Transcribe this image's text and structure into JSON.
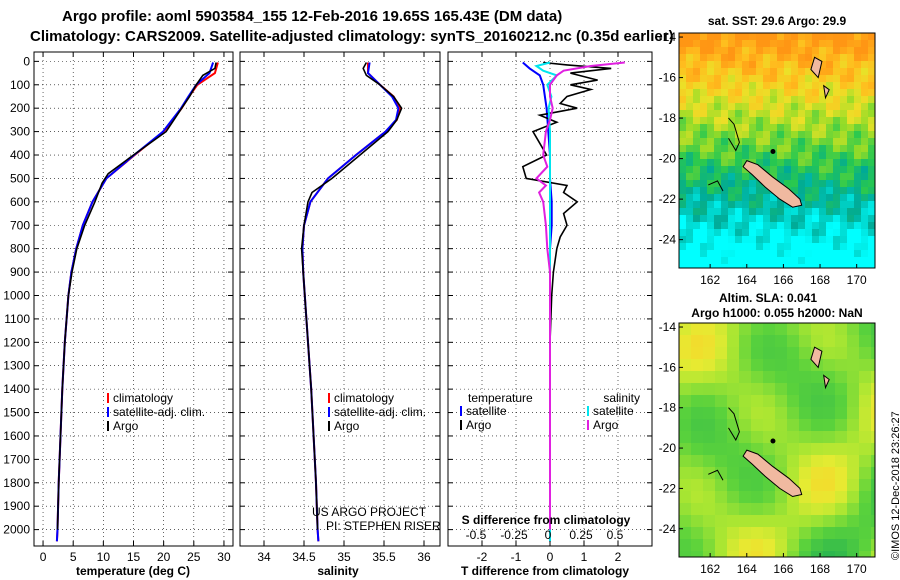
{
  "titles": {
    "line1": "Argo profile: aoml 5903584_155 12-Feb-2016 19.65S 165.43E (DM data)",
    "line2": "Climatology: CARS2009. Satellite-adjusted climatology: synTS_20160212.nc (0.35d earlier)"
  },
  "colors": {
    "climatology": "#ff0000",
    "satellite": "#0000ff",
    "argo": "#000000",
    "sat_salinity": "#00e5ee",
    "argo_salinity": "#e020e0"
  },
  "depth_axis": {
    "ticks": [
      0,
      100,
      200,
      300,
      400,
      500,
      600,
      700,
      800,
      900,
      1000,
      1100,
      1200,
      1300,
      1400,
      1500,
      1600,
      1700,
      1800,
      1900,
      2000
    ],
    "tick_labels": [
      "0",
      "100",
      "200",
      "300",
      "400",
      "500",
      "600",
      "700",
      "800",
      "900",
      "1000",
      "1100",
      "1200",
      "1300",
      "1400",
      "1500",
      "1600",
      "1700",
      "1800",
      "1900",
      "2000"
    ],
    "range": [
      -40,
      2070
    ]
  },
  "chart_data": [
    {
      "type": "line",
      "name": "temperature",
      "xlabel": "temperature (deg C)",
      "xlim": [
        -1.5,
        31.5
      ],
      "xticks": [
        0,
        5,
        10,
        15,
        20,
        25,
        30
      ],
      "xtick_labels": [
        "0",
        "5",
        "10",
        "15",
        "20",
        "25",
        "30"
      ],
      "legend": [
        "climatology",
        "satellite-adj. clim.",
        "Argo"
      ],
      "series": [
        {
          "name": "climatology",
          "depth": [
            5,
            50,
            100,
            150,
            200,
            300,
            400,
            500,
            600,
            700,
            800,
            900,
            1000,
            1200,
            1400,
            1600,
            1800,
            2000,
            2050
          ],
          "values": [
            29.0,
            28.5,
            25.6,
            24.2,
            23.0,
            20.0,
            15.2,
            10.5,
            8.2,
            6.6,
            5.5,
            4.7,
            4.2,
            3.6,
            3.2,
            2.9,
            2.6,
            2.4,
            2.3
          ]
        },
        {
          "name": "satellite-adj. clim.",
          "depth": [
            5,
            50,
            100,
            150,
            200,
            300,
            400,
            500,
            600,
            700,
            800,
            900,
            1000,
            1200,
            1400,
            1600,
            1800,
            2000,
            2050
          ],
          "values": [
            28.2,
            27.6,
            25.4,
            24.1,
            22.9,
            19.9,
            15.1,
            10.5,
            8.2,
            6.6,
            5.5,
            4.7,
            4.2,
            3.6,
            3.2,
            2.9,
            2.6,
            2.4,
            2.3
          ]
        },
        {
          "name": "Argo",
          "depth": [
            5,
            30,
            60,
            100,
            150,
            200,
            300,
            400,
            480,
            520,
            600,
            700,
            800,
            900,
            1000,
            1200,
            1400,
            1600,
            1800,
            2000
          ],
          "values": [
            28.7,
            28.5,
            26.5,
            25.4,
            24.3,
            23.0,
            20.4,
            15.0,
            10.8,
            9.8,
            8.6,
            6.9,
            5.6,
            4.8,
            4.2,
            3.6,
            3.2,
            2.9,
            2.6,
            2.4
          ]
        }
      ]
    },
    {
      "type": "line",
      "name": "salinity",
      "xlabel": "salinity",
      "xlim": [
        33.7,
        36.2
      ],
      "xticks": [
        34,
        34.5,
        35,
        35.5,
        36
      ],
      "xtick_labels": [
        "34",
        "34.5",
        "35",
        "35.5",
        "36"
      ],
      "legend": [
        "climatology",
        "satellite-adj. clim.",
        "Argo"
      ],
      "credit": [
        "US ARGO PROJECT",
        "PI: STEPHEN RISER"
      ],
      "series": [
        {
          "name": "climatology",
          "depth": [
            5,
            50,
            100,
            150,
            200,
            250,
            300,
            400,
            500,
            600,
            700,
            800,
            900,
            1000,
            1200,
            1400,
            1600,
            1800,
            2000,
            2050
          ],
          "values": [
            35.3,
            35.3,
            35.45,
            35.62,
            35.7,
            35.66,
            35.52,
            35.15,
            34.8,
            34.58,
            34.5,
            34.48,
            34.49,
            34.51,
            34.55,
            34.59,
            34.62,
            34.65,
            34.67,
            34.68
          ]
        },
        {
          "name": "satellite-adj. clim.",
          "depth": [
            5,
            50,
            100,
            150,
            200,
            250,
            300,
            400,
            500,
            600,
            700,
            800,
            900,
            1000,
            1200,
            1400,
            1600,
            1800,
            2000,
            2050
          ],
          "values": [
            35.32,
            35.3,
            35.45,
            35.6,
            35.68,
            35.65,
            35.52,
            35.15,
            34.8,
            34.58,
            34.5,
            34.48,
            34.49,
            34.51,
            34.55,
            34.59,
            34.62,
            34.65,
            34.67,
            34.68
          ]
        },
        {
          "name": "Argo",
          "depth": [
            5,
            30,
            60,
            100,
            150,
            200,
            250,
            300,
            400,
            500,
            560,
            600,
            700,
            800,
            900,
            1000,
            1200,
            1400,
            1600,
            1800,
            2000
          ],
          "values": [
            35.28,
            35.24,
            35.28,
            35.45,
            35.62,
            35.72,
            35.66,
            35.55,
            35.2,
            34.85,
            34.6,
            34.55,
            34.5,
            34.47,
            34.49,
            34.51,
            34.55,
            34.59,
            34.62,
            34.65,
            34.67
          ]
        }
      ]
    },
    {
      "type": "line",
      "name": "difference",
      "xlabel": "T difference from climatology",
      "xlim": [
        -3.0,
        3.0
      ],
      "xticks": [
        -2,
        -1,
        0,
        1,
        2
      ],
      "xtick_labels": [
        "-2",
        "-1",
        "0",
        "1",
        "2"
      ],
      "s_label": "S difference from climatology",
      "s_ticks": [
        "-0.5",
        "-0.25",
        "0",
        "0.25",
        "0.5"
      ],
      "legend_t": [
        "temperature",
        "satellite",
        "Argo"
      ],
      "legend_s": [
        "salinity",
        "satellite",
        "Argo"
      ],
      "series": [
        {
          "name": "T satellite",
          "depth": [
            5,
            30,
            60,
            100,
            200,
            300,
            400,
            500,
            600,
            700,
            800,
            1000,
            1500,
            2050
          ],
          "values": [
            -0.8,
            -0.6,
            -0.3,
            -0.2,
            -0.1,
            -0.05,
            0,
            0,
            0.05,
            0.05,
            0,
            0,
            0,
            0
          ]
        },
        {
          "name": "T Argo",
          "depth": [
            5,
            15,
            30,
            50,
            80,
            100,
            120,
            150,
            180,
            200,
            230,
            260,
            300,
            350,
            400,
            450,
            500,
            530,
            560,
            600,
            650,
            700,
            750,
            800,
            900,
            1000,
            1200,
            1500,
            2000
          ],
          "values": [
            -0.2,
            0.5,
            1.8,
            0.6,
            1.4,
            0.6,
            1.2,
            0.5,
            0.3,
            0.8,
            -0.3,
            0.2,
            -0.5,
            -0.3,
            -0.1,
            -0.8,
            -0.7,
            0.5,
            0.4,
            0.8,
            0.4,
            0.5,
            0.3,
            0.2,
            0.1,
            0.05,
            0,
            0,
            0
          ]
        },
        {
          "name": "S satellite",
          "depth": [
            5,
            20,
            40,
            60,
            100,
            150,
            200,
            300,
            400,
            500,
            600,
            800,
            1000,
            1500,
            2050
          ],
          "values": [
            0.0,
            -0.1,
            -0.05,
            0.05,
            -0.02,
            0.01,
            -0.01,
            0,
            0,
            0,
            0,
            0,
            0,
            0,
            0
          ]
        },
        {
          "name": "S Argo",
          "depth": [
            5,
            20,
            40,
            60,
            100,
            150,
            200,
            250,
            300,
            400,
            450,
            500,
            530,
            560,
            600,
            700,
            800,
            900,
            1000,
            1500,
            2000
          ],
          "values": [
            0.55,
            0.3,
            0.1,
            0.05,
            0.0,
            0.0,
            0.02,
            0.0,
            -0.03,
            -0.05,
            -0.02,
            -0.1,
            -0.03,
            -0.08,
            -0.05,
            -0.03,
            -0.02,
            0.0,
            0.0,
            0.0,
            0.0
          ]
        }
      ]
    },
    {
      "type": "heatmap",
      "name": "sst-map",
      "title": "sat. SST: 29.6 Argo: 29.9",
      "xticks": [
        162,
        164,
        166,
        168,
        170
      ],
      "yticks": [
        -14,
        -16,
        -18,
        -20,
        -22,
        -24
      ],
      "xlim": [
        160.3,
        171
      ],
      "ylim": [
        -25.4,
        -13.8
      ],
      "argo_position": [
        165.43,
        -19.65
      ]
    },
    {
      "type": "heatmap",
      "name": "sla-map",
      "title1": "Altim. SLA: 0.041",
      "title2": "Argo h1000: 0.055 h2000: NaN",
      "xticks": [
        162,
        164,
        166,
        168,
        170
      ],
      "yticks": [
        -14,
        -16,
        -18,
        -20,
        -22,
        -24
      ],
      "xlim": [
        160.3,
        171
      ],
      "ylim": [
        -25.4,
        -13.8
      ],
      "argo_position": [
        165.43,
        -19.65
      ]
    }
  ],
  "footer": {
    "stamp": "©IMOS 12-Dec-2018 23:26:27"
  }
}
